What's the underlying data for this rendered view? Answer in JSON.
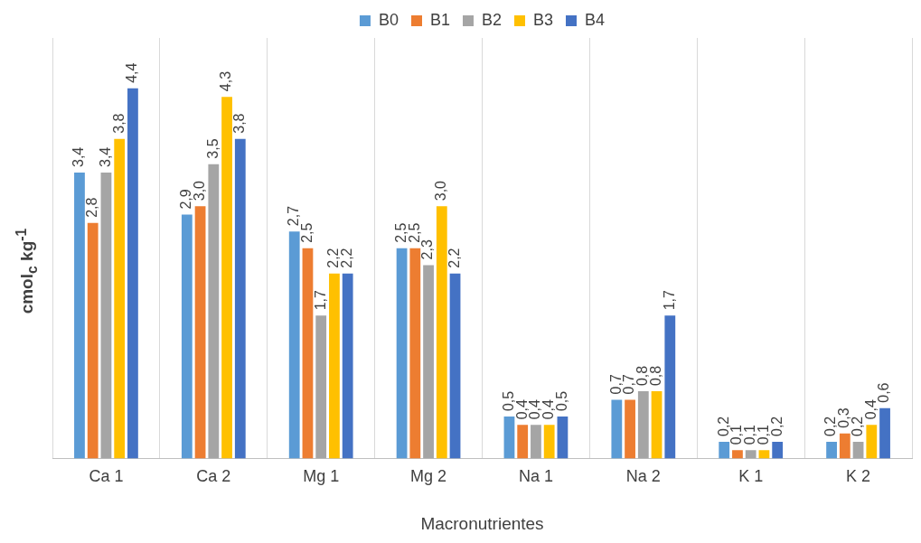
{
  "chart_data": {
    "type": "bar",
    "xlabel": "Macronutrientes",
    "ylabel": "cmol$_{c}$ kg$^{-1}$",
    "categories": [
      "Ca 1",
      "Ca 2",
      "Mg 1",
      "Mg 2",
      "Na 1",
      "Na 2",
      "K 1",
      "K 2"
    ],
    "series": [
      {
        "name": "B0",
        "color": "#5b9bd5",
        "values": [
          3.4,
          2.9,
          2.7,
          2.5,
          0.5,
          0.7,
          0.2,
          0.2
        ],
        "value_labels": [
          "3,4",
          "2,9",
          "2,7",
          "2,5",
          "0,5",
          "0,7",
          "0,2",
          "0,2"
        ]
      },
      {
        "name": "B1",
        "color": "#ed7d31",
        "values": [
          2.8,
          3.0,
          2.5,
          2.5,
          0.4,
          0.7,
          0.1,
          0.3
        ],
        "value_labels": [
          "2,8",
          "3,0",
          "2,5",
          "2,5",
          "0,4",
          "0,7",
          "0,1",
          "0,3"
        ]
      },
      {
        "name": "B2",
        "color": "#a5a5a5",
        "values": [
          3.4,
          3.5,
          1.7,
          2.3,
          0.4,
          0.8,
          0.1,
          0.2
        ],
        "value_labels": [
          "3,4",
          "3,5",
          "1,7",
          "2,3",
          "0,4",
          "0,8",
          "0,1",
          "0,2"
        ]
      },
      {
        "name": "B3",
        "color": "#ffc000",
        "values": [
          3.8,
          4.3,
          2.2,
          3.0,
          0.4,
          0.8,
          0.1,
          0.4
        ],
        "value_labels": [
          "3,8",
          "4,3",
          "2,2",
          "3,0",
          "0,4",
          "0,8",
          "0,1",
          "0,4"
        ]
      },
      {
        "name": "B4",
        "color": "#4472c4",
        "values": [
          4.4,
          3.8,
          2.2,
          2.2,
          0.5,
          1.7,
          0.2,
          0.6
        ],
        "value_labels": [
          "4,4",
          "3,8",
          "2,2",
          "2,2",
          "0,5",
          "1,7",
          "0,2",
          "0,6"
        ]
      }
    ],
    "grid": "x",
    "legend": "top",
    "tick_labels": "x"
  }
}
